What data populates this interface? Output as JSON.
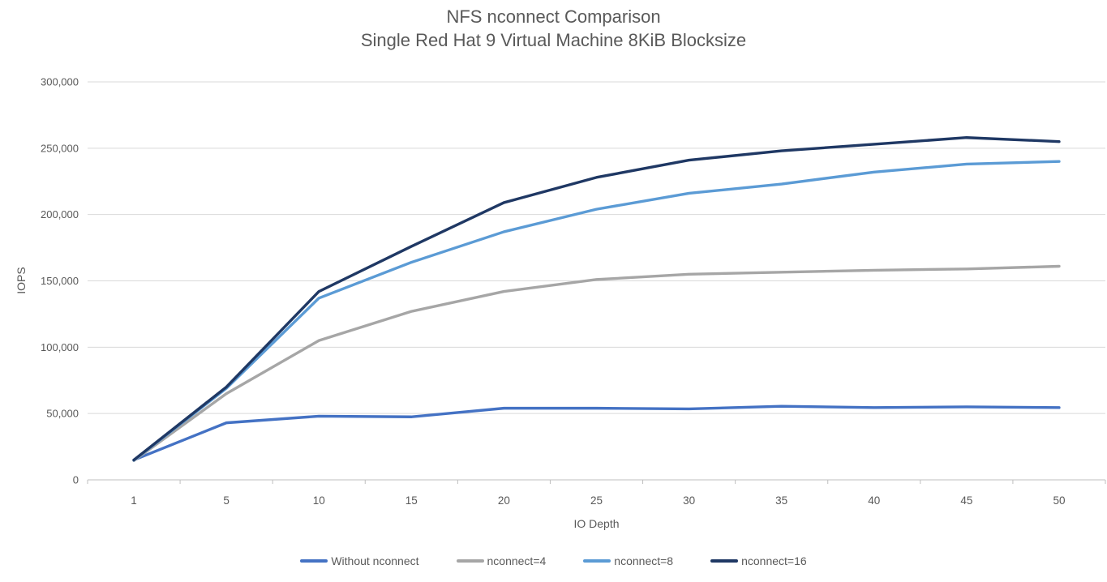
{
  "chart": {
    "title_line1": "NFS nconnect Comparison",
    "title_line2": "Single Red Hat 9 Virtual Machine 8KiB Blocksize"
  },
  "chart_data": {
    "type": "line",
    "title": "NFS nconnect Comparison — Single Red Hat 9 Virtual Machine 8KiB Blocksize",
    "xlabel": "IO Depth",
    "ylabel": "IOPS",
    "categories": [
      1,
      5,
      10,
      15,
      20,
      25,
      30,
      35,
      40,
      45,
      50
    ],
    "series": [
      {
        "name": "Without nconnect",
        "color": "#4472C4",
        "values": [
          15000,
          43000,
          48000,
          47500,
          54000,
          54000,
          53500,
          55500,
          54500,
          55000,
          54500
        ]
      },
      {
        "name": "nconnect=4",
        "color": "#A6A6A6",
        "values": [
          14500,
          65000,
          105000,
          127000,
          142000,
          151000,
          155000,
          156500,
          158000,
          159000,
          161000
        ]
      },
      {
        "name": "nconnect=8",
        "color": "#5B9BD5",
        "values": [
          14800,
          69000,
          137000,
          164000,
          187000,
          204000,
          216000,
          223000,
          232000,
          238000,
          240000
        ]
      },
      {
        "name": "nconnect=16",
        "color": "#1F3864",
        "values": [
          15000,
          70000,
          142000,
          176000,
          209000,
          228000,
          241000,
          248000,
          253000,
          258000,
          255000
        ]
      }
    ],
    "ylim": [
      0,
      300000
    ],
    "ytick_step": 50000,
    "ytick_labels": [
      "0",
      "50,000",
      "100,000",
      "150,000",
      "200,000",
      "250,000",
      "300,000"
    ],
    "grid": true,
    "legend_position": "bottom",
    "legend_entries": [
      "Without nconnect",
      "nconnect=4",
      "nconnect=8",
      "nconnect=16"
    ]
  },
  "colors": {
    "text": "#595959",
    "gridline": "#D9D9D9",
    "axis": "#BFBFBF",
    "background": "#FFFFFF"
  }
}
